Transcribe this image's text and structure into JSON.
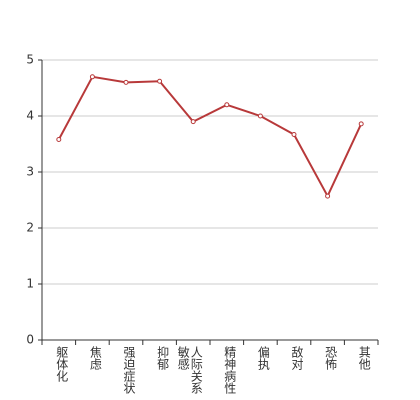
{
  "chart_data": {
    "type": "line",
    "categories": [
      "躯体化",
      "焦虑",
      "强迫症状",
      "抑郁",
      "人际关系敏感",
      "精神病性",
      "偏执",
      "敌对",
      "恐怖",
      "其他"
    ],
    "series": [
      {
        "color": "#b8393a",
        "values": [
          3.58,
          4.7,
          4.6,
          4.62,
          3.9,
          4.2,
          4.0,
          3.67,
          2.57,
          3.86
        ]
      }
    ],
    "ylim": [
      0,
      5
    ],
    "yticks": [
      0,
      1,
      2,
      3,
      4,
      5
    ],
    "grid": true
  }
}
